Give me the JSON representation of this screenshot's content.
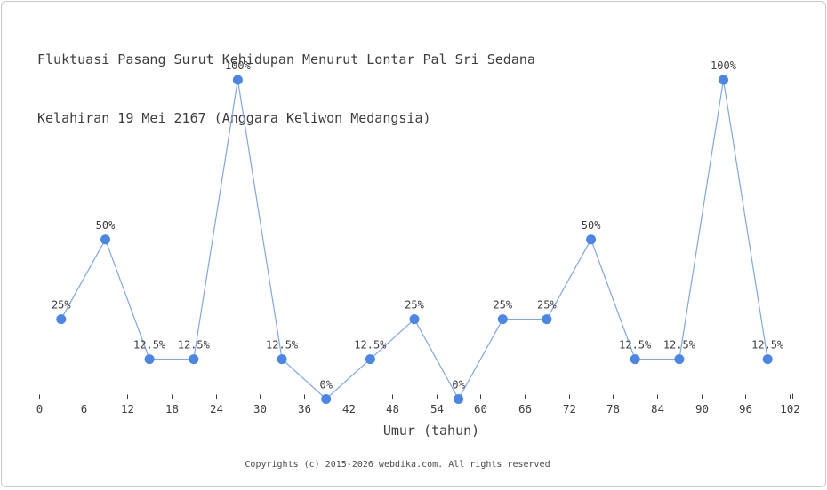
{
  "title": {
    "line1": "Fluktuasi Pasang Surut Kehidupan Menurut Lontar Pal Sri Sedana",
    "line2": "Kelahiran 19 Mei 2167 (Anggara Keliwon Medangsia)"
  },
  "footer": {
    "text": "Copyrights (c) 2015-2026 webdika.com. All rights reserved"
  },
  "chart_data": {
    "type": "line",
    "title": "Fluktuasi Pasang Surut Kehidupan Menurut Lontar Pal Sri Sedana Kelahiran 19 Mei 2167 (Anggara Keliwon Medangsia)",
    "title_lines": [
      "Fluktuasi Pasang Surut Kehidupan Menurut Lontar Pal Sri Sedana",
      "Kelahiran 19 Mei 2167 (Anggara Keliwon Medangsia)"
    ],
    "xlabel": "Umur (tahun)",
    "ylabel": "",
    "x": [
      3,
      9,
      15,
      21,
      27,
      33,
      39,
      45,
      51,
      57,
      63,
      69,
      75,
      81,
      87,
      93,
      99
    ],
    "values": [
      25,
      50,
      12.5,
      12.5,
      100,
      12.5,
      0,
      12.5,
      25,
      0,
      25,
      25,
      50,
      12.5,
      12.5,
      100,
      12.5
    ],
    "point_labels": [
      "25%",
      "50%",
      "12.5%",
      "12.5%",
      "100%",
      "12.5%",
      "0%",
      "12.5%",
      "25%",
      "0%",
      "25%",
      "25%",
      "50%",
      "12.5%",
      "12.5%",
      "100%",
      "12.5%"
    ],
    "x_ticks": [
      0,
      6,
      12,
      18,
      24,
      30,
      36,
      42,
      48,
      54,
      60,
      66,
      72,
      78,
      84,
      90,
      96,
      102
    ],
    "xlim": [
      0,
      102
    ],
    "ylim": [
      0,
      100
    ],
    "grid": false,
    "legend": false,
    "colors": {
      "line": "#7da7f0",
      "marker": "#4a86e8",
      "axis": "#3d3d3d",
      "label_text": "#3d3d3d"
    }
  }
}
